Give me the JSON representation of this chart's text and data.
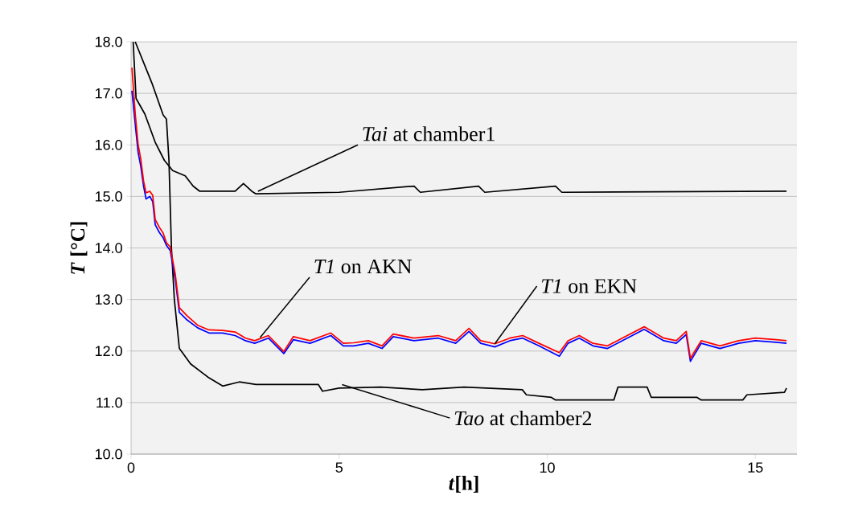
{
  "chart_data": {
    "type": "line",
    "xlabel": "*t*[h]",
    "ylabel": "*T* [°C]",
    "xlim": [
      0,
      16
    ],
    "ylim": [
      10,
      18
    ],
    "xticks": [
      0,
      5,
      10,
      15
    ],
    "yticks": [
      {
        "value": 10,
        "label": "10.0"
      },
      {
        "value": 11,
        "label": "11.0"
      },
      {
        "value": 12,
        "label": "12.0"
      },
      {
        "value": 13,
        "label": "13.0"
      },
      {
        "value": 14,
        "label": "14.0"
      },
      {
        "value": 15,
        "label": "15.0"
      },
      {
        "value": 16,
        "label": "16.0"
      },
      {
        "value": 17,
        "label": "17.0"
      },
      {
        "value": 18,
        "label": "18.0"
      }
    ],
    "grid": "y",
    "series": [
      {
        "color": "#000000",
        "x": [
          0.05,
          0.12,
          0.33,
          0.58,
          0.8,
          1.0,
          1.3,
          1.49,
          1.65,
          2.5,
          2.7,
          2.9,
          3.0,
          5.0,
          6.8,
          6.95,
          8.35,
          8.5,
          10.2,
          10.35,
          15.75
        ],
        "values": [
          18.0,
          16.9,
          16.6,
          16.05,
          15.7,
          15.5,
          15.4,
          15.2,
          15.1,
          15.1,
          15.25,
          15.1,
          15.05,
          15.08,
          15.2,
          15.08,
          15.2,
          15.08,
          15.2,
          15.08,
          15.1
        ]
      },
      {
        "color": "#000000",
        "x": [
          0.1,
          0.5,
          0.77,
          0.85,
          0.91,
          0.97,
          1.04,
          1.16,
          1.43,
          1.87,
          2.2,
          2.6,
          3.0,
          4.5,
          4.6,
          5.0,
          6.0,
          7.0,
          8.0,
          9.4,
          9.5,
          10.1,
          10.2,
          11.6,
          11.7,
          12.4,
          12.5,
          13.6,
          13.7,
          14.7,
          14.8,
          15.7,
          15.75
        ],
        "values": [
          18.0,
          17.2,
          16.58,
          16.5,
          15.7,
          14.0,
          13.0,
          12.05,
          11.75,
          11.48,
          11.32,
          11.4,
          11.35,
          11.35,
          11.22,
          11.28,
          11.3,
          11.25,
          11.3,
          11.25,
          11.15,
          11.1,
          11.05,
          11.05,
          11.3,
          11.3,
          11.1,
          11.1,
          11.05,
          11.05,
          11.15,
          11.2,
          11.28
        ]
      },
      {
        "color": "#0000ff",
        "x": [
          0.02,
          0.1,
          0.17,
          0.23,
          0.3,
          0.36,
          0.45,
          0.52,
          0.58,
          0.68,
          0.77,
          0.85,
          0.94,
          1.06,
          1.16,
          1.35,
          1.6,
          1.87,
          2.2,
          2.5,
          2.75,
          2.97,
          3.3,
          3.67,
          3.9,
          4.3,
          4.8,
          5.1,
          5.35,
          5.7,
          6.03,
          6.3,
          6.8,
          7.38,
          7.8,
          8.12,
          8.4,
          8.74,
          9.1,
          9.41,
          9.8,
          10.29,
          10.5,
          10.77,
          11.1,
          11.45,
          11.8,
          12.33,
          12.8,
          13.1,
          13.34,
          13.44,
          13.7,
          14.15,
          14.6,
          15.0,
          15.5,
          15.75
        ],
        "values": [
          17.05,
          16.4,
          15.85,
          15.6,
          15.2,
          14.95,
          15.0,
          14.9,
          14.45,
          14.3,
          14.2,
          14.05,
          13.95,
          13.4,
          12.75,
          12.6,
          12.45,
          12.35,
          12.35,
          12.3,
          12.2,
          12.15,
          12.25,
          11.95,
          12.22,
          12.15,
          12.3,
          12.1,
          12.1,
          12.15,
          12.05,
          12.28,
          12.2,
          12.25,
          12.15,
          12.38,
          12.15,
          12.08,
          12.2,
          12.25,
          12.1,
          11.9,
          12.15,
          12.25,
          12.1,
          12.05,
          12.2,
          12.42,
          12.2,
          12.15,
          12.32,
          11.8,
          12.15,
          12.05,
          12.15,
          12.2,
          12.17,
          12.15
        ]
      },
      {
        "color": "#ff0000",
        "x": [
          0.02,
          0.1,
          0.17,
          0.23,
          0.3,
          0.36,
          0.45,
          0.52,
          0.58,
          0.68,
          0.77,
          0.85,
          0.94,
          1.06,
          1.16,
          1.35,
          1.6,
          1.87,
          2.2,
          2.5,
          2.75,
          2.97,
          3.3,
          3.67,
          3.9,
          4.3,
          4.8,
          5.1,
          5.35,
          5.7,
          6.03,
          6.3,
          6.8,
          7.38,
          7.8,
          8.12,
          8.4,
          8.74,
          9.1,
          9.41,
          9.8,
          10.29,
          10.5,
          10.77,
          11.1,
          11.45,
          11.8,
          12.33,
          12.8,
          13.1,
          13.34,
          13.44,
          13.7,
          14.15,
          14.6,
          15.0,
          15.5,
          15.75
        ],
        "values": [
          17.5,
          16.6,
          16.0,
          15.74,
          15.3,
          15.07,
          15.1,
          15.02,
          14.55,
          14.4,
          14.29,
          14.1,
          14.02,
          13.5,
          12.84,
          12.68,
          12.5,
          12.41,
          12.4,
          12.37,
          12.25,
          12.2,
          12.3,
          11.99,
          12.28,
          12.2,
          12.35,
          12.15,
          12.16,
          12.2,
          12.1,
          12.33,
          12.25,
          12.3,
          12.2,
          12.44,
          12.2,
          12.14,
          12.25,
          12.3,
          12.15,
          11.97,
          12.2,
          12.3,
          12.15,
          12.1,
          12.25,
          12.47,
          12.25,
          12.2,
          12.38,
          11.86,
          12.2,
          12.1,
          12.2,
          12.25,
          12.22,
          12.2
        ]
      }
    ],
    "annotations": [
      {
        "text": "*Tai* at chamber1",
        "x": 3.05,
        "y": 15.1
      },
      {
        "text": "*T1* on AKN",
        "x": 3.1,
        "y": 12.26
      },
      {
        "text": "*T1* on EKN",
        "x": 8.74,
        "y": 12.14
      },
      {
        "text": "*Tao* at chamber2",
        "x": 5.07,
        "y": 11.35
      }
    ]
  }
}
